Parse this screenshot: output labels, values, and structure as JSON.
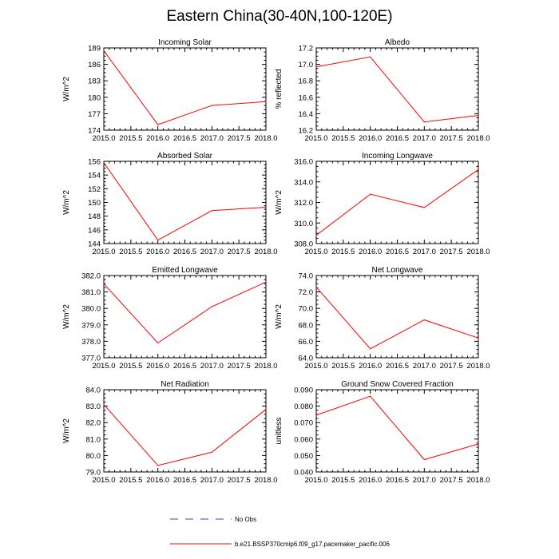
{
  "page_title": "Eastern China(30-40N,100-120E)",
  "colors": {
    "model_line": "#ff0000",
    "obs_line": "#4a3fbf",
    "axis": "#000000"
  },
  "legend": {
    "obs_label": "No Obs",
    "model_label": "b.e21.BSSP370cmip6.f09_g17.pacemaker_pacific.006"
  },
  "chart_data": [
    {
      "type": "line",
      "title": "Incoming Solar",
      "ylabel": "W/m^2",
      "x": [
        2015.0,
        2016.0,
        2017.0,
        2018.0
      ],
      "values": [
        188.5,
        175.0,
        178.5,
        179.2
      ],
      "xlim": [
        2015.0,
        2018.0
      ],
      "ylim": [
        174,
        189
      ],
      "xticks": [
        "2015.0",
        "2015.5",
        "2016.0",
        "2016.5",
        "2017.0",
        "2017.5",
        "2018.0"
      ],
      "yticks": [
        174,
        177,
        180,
        183,
        186,
        189
      ],
      "ytick_labels": [
        "174",
        "177",
        "180",
        "183",
        "186",
        "189"
      ]
    },
    {
      "type": "line",
      "title": "Albedo",
      "ylabel": "% reflected",
      "x": [
        2015.0,
        2016.0,
        2017.0,
        2018.0
      ],
      "values": [
        16.97,
        17.09,
        16.3,
        16.38
      ],
      "xlim": [
        2015.0,
        2018.0
      ],
      "ylim": [
        16.2,
        17.2
      ],
      "xticks": [
        "2015.0",
        "2015.5",
        "2016.0",
        "2016.5",
        "2017.0",
        "2017.5",
        "2018.0"
      ],
      "yticks": [
        16.2,
        16.4,
        16.6,
        16.8,
        17.0,
        17.2
      ],
      "ytick_labels": [
        "16.2",
        "16.4",
        "16.6",
        "16.8",
        "17.0",
        "17.2"
      ]
    },
    {
      "type": "line",
      "title": "Absorbed Solar",
      "ylabel": "W/m^2",
      "x": [
        2015.0,
        2016.0,
        2017.0,
        2018.0
      ],
      "values": [
        155.8,
        144.5,
        148.8,
        149.3
      ],
      "xlim": [
        2015.0,
        2018.0
      ],
      "ylim": [
        144,
        156
      ],
      "xticks": [
        "2015.0",
        "2015.5",
        "2016.0",
        "2016.5",
        "2017.0",
        "2017.5",
        "2018.0"
      ],
      "yticks": [
        144,
        146,
        148,
        150,
        152,
        154,
        156
      ],
      "ytick_labels": [
        "144",
        "146",
        "148",
        "150",
        "152",
        "154",
        "156"
      ]
    },
    {
      "type": "line",
      "title": "Incoming Longwave",
      "ylabel": "W/m^2",
      "x": [
        2015.0,
        2016.0,
        2017.0,
        2018.0
      ],
      "values": [
        308.8,
        312.8,
        311.5,
        315.2
      ],
      "xlim": [
        2015.0,
        2018.0
      ],
      "ylim": [
        308.0,
        316.0
      ],
      "xticks": [
        "2015.0",
        "2015.5",
        "2016.0",
        "2016.5",
        "2017.0",
        "2017.5",
        "2018.0"
      ],
      "yticks": [
        308.0,
        310.0,
        312.0,
        314.0,
        316.0
      ],
      "ytick_labels": [
        "308.0",
        "310.0",
        "312.0",
        "314.0",
        "316.0"
      ]
    },
    {
      "type": "line",
      "title": "Emitted Longwave",
      "ylabel": "W/m^2",
      "x": [
        2015.0,
        2016.0,
        2017.0,
        2018.0
      ],
      "values": [
        381.5,
        377.9,
        380.1,
        381.6
      ],
      "xlim": [
        2015.0,
        2018.0
      ],
      "ylim": [
        377.0,
        382.0
      ],
      "xticks": [
        "2015.0",
        "2015.5",
        "2016.0",
        "2016.5",
        "2017.0",
        "2017.5",
        "2018.0"
      ],
      "yticks": [
        377.0,
        378.0,
        379.0,
        380.0,
        381.0,
        382.0
      ],
      "ytick_labels": [
        "377.0",
        "378.0",
        "379.0",
        "380.0",
        "381.0",
        "382.0"
      ]
    },
    {
      "type": "line",
      "title": "Net Longwave",
      "ylabel": "W/m^2",
      "x": [
        2015.0,
        2016.0,
        2017.0,
        2018.0
      ],
      "values": [
        72.6,
        65.1,
        68.6,
        66.4
      ],
      "xlim": [
        2015.0,
        2018.0
      ],
      "ylim": [
        64.0,
        74.0
      ],
      "xticks": [
        "2015.0",
        "2015.5",
        "2016.0",
        "2016.5",
        "2017.0",
        "2017.5",
        "2018.0"
      ],
      "yticks": [
        64.0,
        66.0,
        68.0,
        70.0,
        72.0,
        74.0
      ],
      "ytick_labels": [
        "64.0",
        "66.0",
        "68.0",
        "70.0",
        "72.0",
        "74.0"
      ]
    },
    {
      "type": "line",
      "title": "Net Radiation",
      "ylabel": "W/m^2",
      "x": [
        2015.0,
        2016.0,
        2017.0,
        2018.0
      ],
      "values": [
        83.1,
        79.4,
        80.2,
        82.8
      ],
      "xlim": [
        2015.0,
        2018.0
      ],
      "ylim": [
        79.0,
        84.0
      ],
      "xticks": [
        "2015.0",
        "2015.5",
        "2016.0",
        "2016.5",
        "2017.0",
        "2017.5",
        "2018.0"
      ],
      "yticks": [
        79.0,
        80.0,
        81.0,
        82.0,
        83.0,
        84.0
      ],
      "ytick_labels": [
        "79.0",
        "80.0",
        "81.0",
        "82.0",
        "83.0",
        "84.0"
      ]
    },
    {
      "type": "line",
      "title": "Ground Snow Covered Fraction",
      "ylabel": "unitless",
      "x": [
        2015.0,
        2016.0,
        2017.0,
        2018.0
      ],
      "values": [
        0.0745,
        0.086,
        0.0475,
        0.057
      ],
      "xlim": [
        2015.0,
        2018.0
      ],
      "ylim": [
        0.04,
        0.09
      ],
      "xticks": [
        "2015.0",
        "2015.5",
        "2016.0",
        "2016.5",
        "2017.0",
        "2017.5",
        "2018.0"
      ],
      "yticks": [
        0.04,
        0.05,
        0.06,
        0.07,
        0.08,
        0.09
      ],
      "ytick_labels": [
        "0.040",
        "0.050",
        "0.060",
        "0.070",
        "0.080",
        "0.090"
      ]
    }
  ]
}
